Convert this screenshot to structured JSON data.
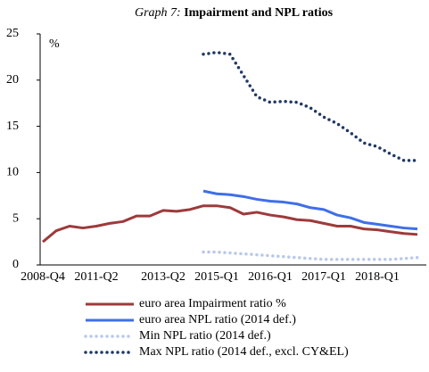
{
  "chart_data": {
    "type": "line",
    "title_label": "Graph 7:",
    "title": "Impairment and NPL ratios",
    "y_unit": "%",
    "categories": [
      "2008-Q4",
      null,
      null,
      null,
      "2011-Q2",
      null,
      null,
      null,
      null,
      "2013-Q2",
      null,
      null,
      null,
      "2015-Q1",
      null,
      null,
      null,
      "2016-Q1",
      null,
      null,
      null,
      "2017-Q1",
      null,
      null,
      null,
      "2018-Q1",
      null,
      null,
      null
    ],
    "ylim": [
      0,
      25
    ],
    "yticks": [
      0,
      5,
      10,
      15,
      20,
      25
    ],
    "series": [
      {
        "name": "euro area Impairment ratio %",
        "color": "#9e3a3a",
        "style": "solid",
        "values": [
          2.5,
          3.7,
          4.2,
          4.0,
          4.2,
          4.5,
          4.7,
          5.3,
          5.3,
          5.9,
          5.8,
          6.0,
          6.4,
          6.4,
          6.2,
          5.5,
          5.7,
          5.4,
          5.2,
          4.9,
          4.8,
          4.5,
          4.2,
          4.2,
          3.9,
          3.8,
          3.6,
          3.4,
          3.3
        ]
      },
      {
        "name": "euro area NPL ratio (2014 def.)",
        "color": "#3f6fe8",
        "style": "solid",
        "values": [
          null,
          null,
          null,
          null,
          null,
          null,
          null,
          null,
          null,
          null,
          null,
          null,
          8.0,
          7.7,
          7.6,
          7.4,
          7.1,
          6.9,
          6.8,
          6.6,
          6.2,
          6.0,
          5.4,
          5.1,
          4.6,
          4.4,
          4.2,
          4.0,
          3.9
        ]
      },
      {
        "name": "Min NPL ratio (2014 def.)",
        "color": "#b8c8ec",
        "style": "dotted",
        "values": [
          null,
          null,
          null,
          null,
          null,
          null,
          null,
          null,
          null,
          null,
          null,
          null,
          1.4,
          1.4,
          1.3,
          1.2,
          1.1,
          1.0,
          0.9,
          0.8,
          0.7,
          0.6,
          0.6,
          0.6,
          0.6,
          0.6,
          0.6,
          0.7,
          0.8
        ]
      },
      {
        "name": "Max NPL ratio (2014 def., excl. CY&EL)",
        "color": "#1f3864",
        "style": "dotted",
        "values": [
          null,
          null,
          null,
          null,
          null,
          null,
          null,
          null,
          null,
          null,
          null,
          null,
          22.8,
          23.0,
          22.8,
          20.5,
          18.2,
          17.6,
          17.7,
          17.6,
          17.0,
          16.0,
          15.3,
          14.3,
          13.2,
          12.8,
          12.0,
          11.3,
          11.3
        ]
      }
    ]
  }
}
